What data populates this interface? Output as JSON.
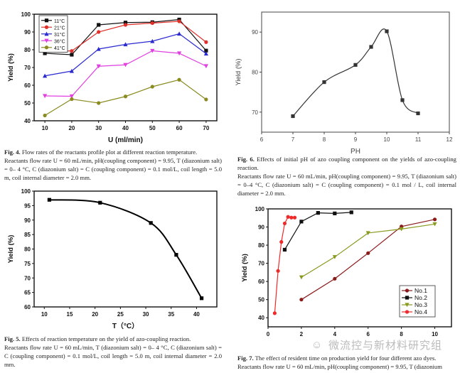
{
  "chart_data": [
    {
      "id": "fig4",
      "type": "line",
      "xlabel": "U  (ml/min)",
      "ylabel": "Yield  (%)",
      "xlim": [
        6,
        74
      ],
      "ylim": [
        40,
        100
      ],
      "xticks": [
        10,
        20,
        30,
        40,
        50,
        60,
        70
      ],
      "yticks": [
        40,
        50,
        60,
        70,
        80,
        90,
        100
      ],
      "legend": "top-left",
      "grid": false,
      "x": [
        10,
        20,
        30,
        40,
        50,
        60,
        70
      ],
      "series": [
        {
          "name": "11°C",
          "color": "#111111",
          "marker": "square",
          "values": [
            78,
            77.2,
            94,
            95.3,
            95.5,
            97,
            79.5
          ]
        },
        {
          "name": "21°C",
          "color": "#e0302a",
          "marker": "circle",
          "values": [
            79.5,
            79.3,
            90,
            94,
            95,
            96,
            84.3
          ]
        },
        {
          "name": "31°C",
          "color": "#2a2ad0",
          "marker": "triangle-up",
          "values": [
            65.3,
            68,
            80.4,
            83,
            84.8,
            89,
            77.8
          ]
        },
        {
          "name": "36°C",
          "color": "#e040e0",
          "marker": "triangle-down",
          "values": [
            54,
            53.8,
            70.7,
            71.5,
            79.4,
            78,
            70.8
          ]
        },
        {
          "name": "41°C",
          "color": "#8a8a20",
          "marker": "circle",
          "values": [
            43,
            52.2,
            50,
            53.7,
            59.2,
            63.1,
            52
          ]
        }
      ]
    },
    {
      "id": "fig6",
      "type": "line",
      "xlabel": "PH",
      "ylabel": "Yield (%)",
      "smooth": true,
      "xlim": [
        6,
        12
      ],
      "ylim": [
        65,
        95
      ],
      "xticks": [
        6,
        7,
        8,
        9,
        10,
        11,
        12
      ],
      "yticks": [
        70,
        80,
        90
      ],
      "grid": false,
      "x": [
        7,
        8,
        9,
        9.5,
        10,
        10.5,
        11
      ],
      "series": [
        {
          "color": "#333333",
          "marker": "square",
          "values": [
            69,
            77.5,
            81.8,
            86.3,
            90.2,
            73,
            69.7
          ]
        }
      ]
    },
    {
      "id": "fig5",
      "type": "line",
      "xlabel": "T（°C）",
      "ylabel": "Yield  (%)",
      "smooth": true,
      "xlim": [
        8,
        44
      ],
      "ylim": [
        60,
        100
      ],
      "xticks": [
        10,
        15,
        20,
        25,
        30,
        35,
        40
      ],
      "yticks": [
        60,
        65,
        70,
        75,
        80,
        85,
        90,
        95,
        100
      ],
      "grid": false,
      "x": [
        11,
        21,
        31,
        36,
        41
      ],
      "series": [
        {
          "color": "#000000",
          "marker": "square",
          "values": [
            97,
            96,
            89,
            78,
            63
          ]
        }
      ]
    },
    {
      "id": "fig7",
      "type": "line",
      "xlabel": "",
      "ylabel": "Yield  (%)",
      "xlim": [
        0,
        11
      ],
      "ylim": [
        35,
        100
      ],
      "xticks": [
        0,
        2,
        4,
        6,
        8,
        10
      ],
      "yticks": [
        40,
        50,
        60,
        70,
        80,
        90,
        100
      ],
      "legend": "bottom-right",
      "grid": false,
      "series": [
        {
          "name": "No.1",
          "color": "#8b1a1a",
          "marker": "circle",
          "x": [
            2,
            4,
            6,
            8,
            10
          ],
          "values": [
            50,
            61.5,
            75.6,
            90.3,
            94.2
          ]
        },
        {
          "name": "No.2",
          "color": "#111111",
          "marker": "square",
          "x": [
            1,
            2,
            3,
            4,
            5
          ],
          "values": [
            77.5,
            93,
            97.8,
            97.5,
            98.1
          ]
        },
        {
          "name": "No.3",
          "color": "#8a9a20",
          "marker": "triangle-down",
          "x": [
            2,
            4,
            6,
            8,
            10
          ],
          "values": [
            62.3,
            73.5,
            86.7,
            88.9,
            91.6
          ]
        },
        {
          "name": "No.4",
          "color": "#ee2a2a",
          "marker": "circle",
          "x": [
            0.4,
            0.6,
            0.8,
            1.0,
            1.2,
            1.4,
            1.6
          ],
          "values": [
            42.5,
            65.8,
            81.8,
            92,
            95.6,
            95.2,
            95.2
          ]
        }
      ]
    }
  ],
  "captions": {
    "fig4": {
      "label": "Fig. 4.",
      "title": " Flow rates of the reactants profile plot at different reaction temperature.",
      "body": "Reactants flow rate U = 60 mL/min, pH(coupling component) = 9.95, T (diazonium salt) = 0– 4 °C, C (diazonium salt) = C (coupling component) = 0.1 mol/L, coil length = 5.0 m, coil internal diameter = 2.0 mm."
    },
    "fig6": {
      "label": "Fig. 6.",
      "title": " Effects of initial pH of azo coupling component on the yields of azo-coupling reaction.",
      "body": "Reactants flow rate U = 60 mL/min, pH(coupling component) = 9.95, T (diazonium salt) = 0–4 °C, C (diazonium salt) = C (coupling component) = 0.1 mol / L, coil internal diameter = 2.0 mm."
    },
    "fig5": {
      "label": "Fig. 5.",
      "title": " Effects of reaction temperature on the yield of azo-coupling reaction.",
      "body": "Reactants flow rate U = 60 mL/min, T (diazonium salt) = 0– 4 °C, C (diazonium salt) = C (coupling component) = 0.1 mol/L, coil length = 5.0 m, coil internal diameter = 2.0 mm."
    },
    "fig7": {
      "label": "Fig. 7.",
      "title": " The effect of resident time on production yield for four different azo dyes.",
      "body": "Reactants flow rate U = 60 mL/min, pH(coupling component) = 9.95, T (diazonium"
    }
  },
  "watermark": "微流控与新材料研究组"
}
